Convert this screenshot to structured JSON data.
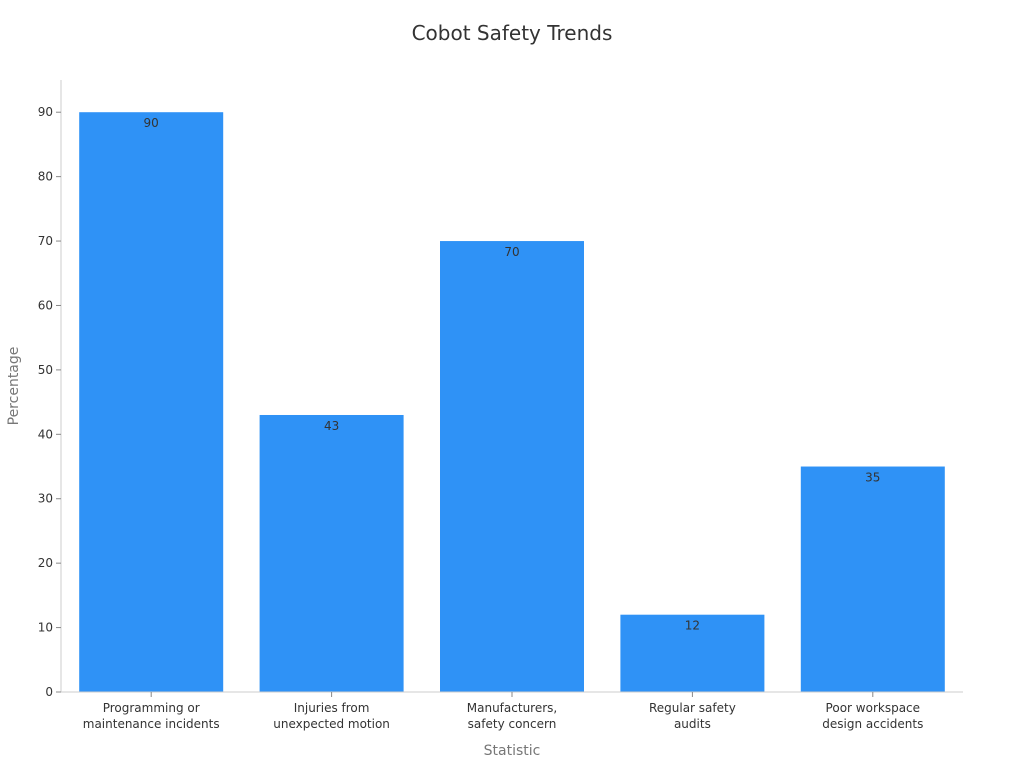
{
  "chart_data": {
    "type": "bar",
    "title": "Cobot Safety Trends",
    "xlabel": "Statistic",
    "ylabel": "Percentage",
    "ylim": [
      0,
      95
    ],
    "yticks": [
      0,
      10,
      20,
      30,
      40,
      50,
      60,
      70,
      80,
      90
    ],
    "categories": [
      [
        "Programming or",
        "maintenance incidents"
      ],
      [
        "Injuries from",
        "unexpected motion"
      ],
      [
        "Manufacturers,",
        "safety concern"
      ],
      [
        "Regular safety",
        "audits"
      ],
      [
        "Poor workspace",
        "design accidents"
      ]
    ],
    "values": [
      90,
      43,
      70,
      12,
      35
    ],
    "bar_color": "#2f92f6",
    "grid": false,
    "legend": "none"
  }
}
